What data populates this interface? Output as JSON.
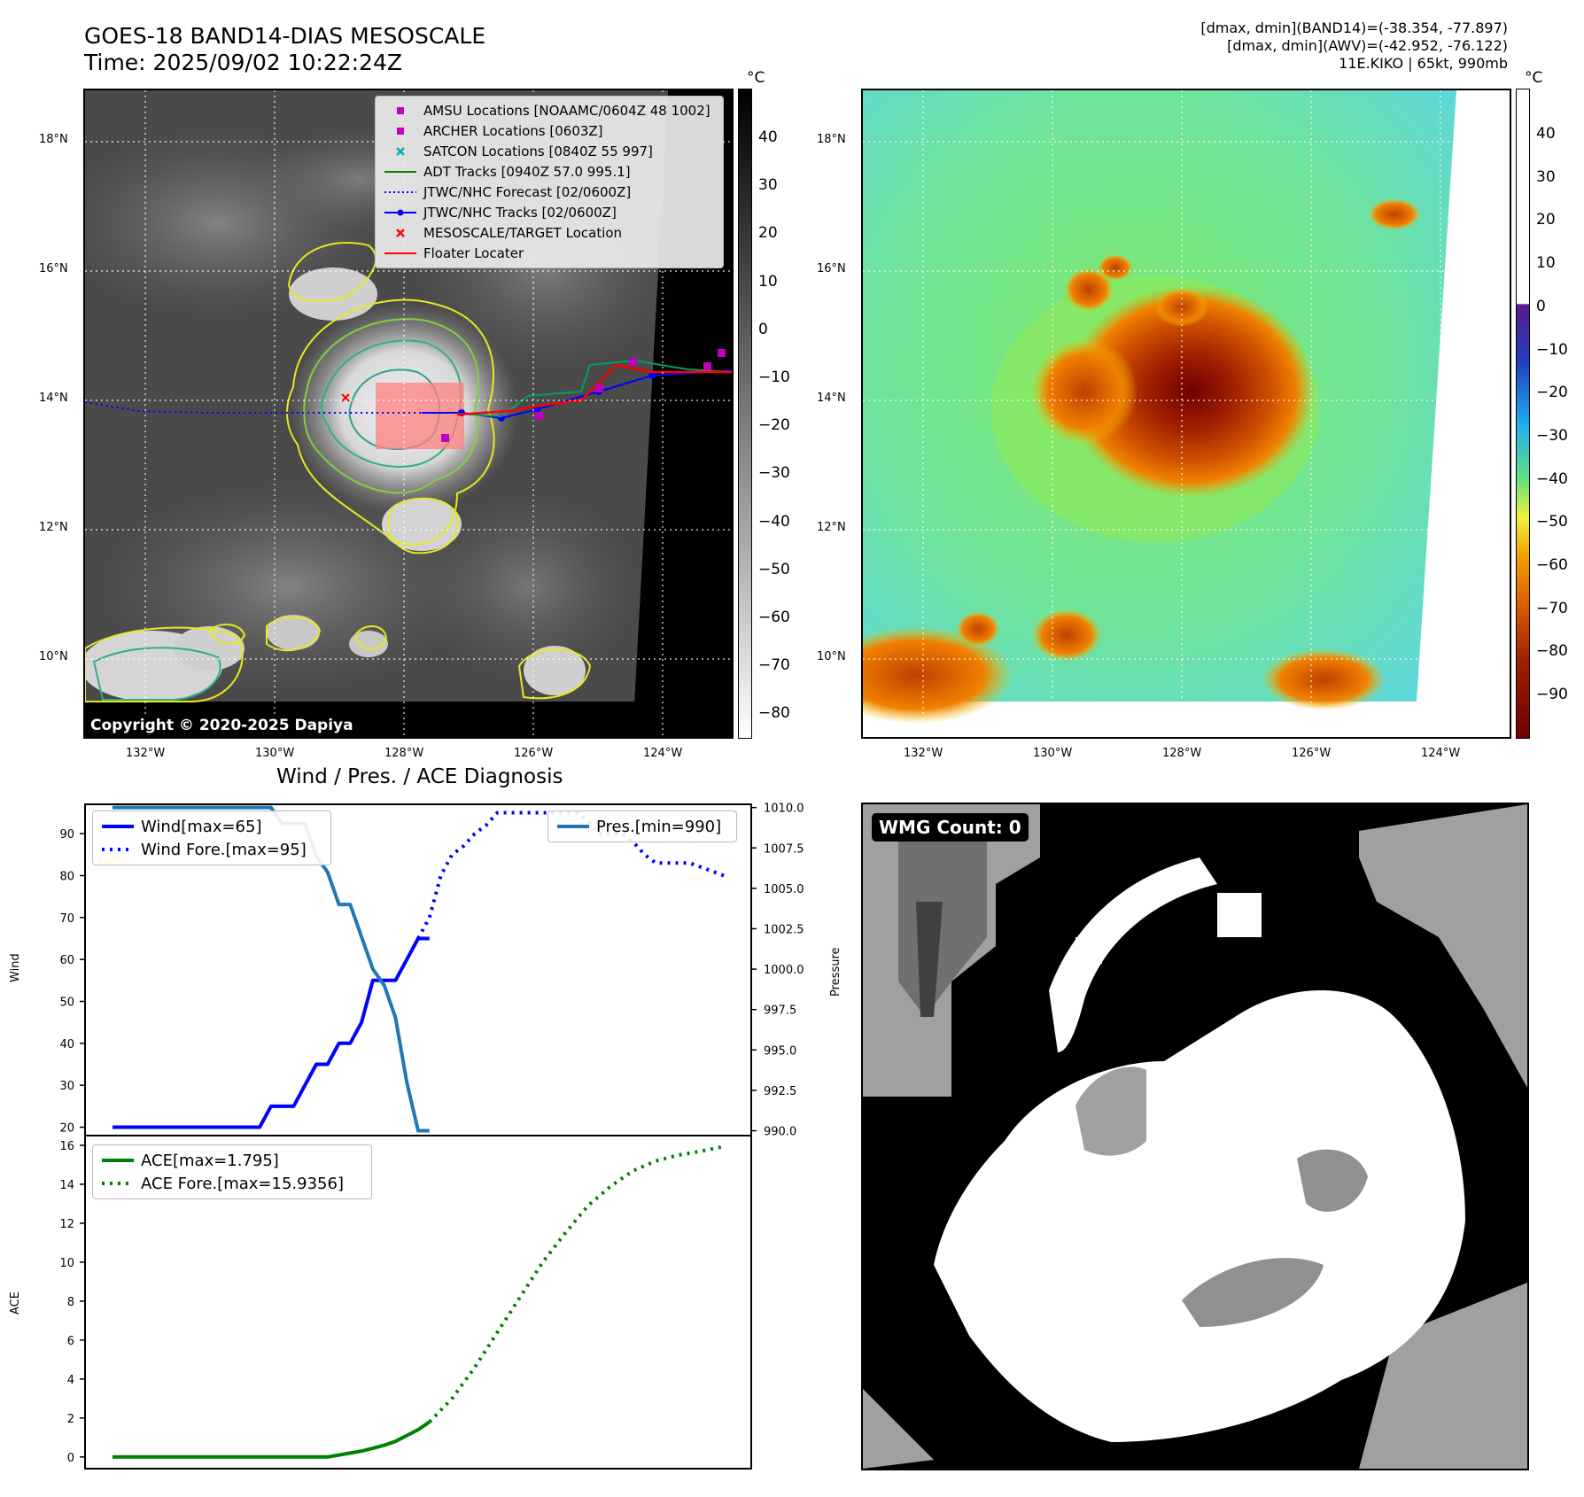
{
  "header": {
    "title_line1": "GOES-18 BAND14-DIAS MESOSCALE",
    "title_line2": "Time: 2025/09/02 10:22:24Z",
    "info_line1": "[dmax, dmin](BAND14)=(-38.354, -77.897)",
    "info_line2": "[dmax, dmin](AWV)=(-42.952, -76.122)",
    "info_line3": "11E.KIKO | 65kt, 990mb"
  },
  "map_panels": {
    "lon_ticks": [
      "132°W",
      "130°W",
      "128°W",
      "126°W",
      "124°W"
    ],
    "lat_ticks": [
      "18°N",
      "16°N",
      "14°N",
      "12°N",
      "10°N"
    ],
    "unit": "°C",
    "copyright": "Copyright © 2020-2025 Dapiya",
    "gray_colorbar_ticks": [
      "40",
      "30",
      "20",
      "10",
      "0",
      "−10",
      "−20",
      "−30",
      "−40",
      "−50",
      "−60",
      "−70",
      "−80"
    ],
    "color_colorbar_ticks": [
      "40",
      "30",
      "20",
      "10",
      "0",
      "−10",
      "−20",
      "−30",
      "−40",
      "−50",
      "−60",
      "−70",
      "−80",
      "−90"
    ],
    "legend": [
      {
        "label": "AMSU Locations [NOAAMC/0604Z 48 1002]",
        "color": "#c000c0",
        "symbol": "square"
      },
      {
        "label": "ARCHER Locations [0603Z]",
        "color": "#c000c0",
        "symbol": "square"
      },
      {
        "label": "SATCON Locations [0840Z 55 997]",
        "color": "#00b0b0",
        "symbol": "x"
      },
      {
        "label": "ADT Tracks [0940Z 57.0 995.1]",
        "color": "#008000",
        "symbol": "line"
      },
      {
        "label": "JTWC/NHC Forecast [02/0600Z]",
        "color": "#0000ff",
        "symbol": "dotted"
      },
      {
        "label": "JTWC/NHC Tracks [02/0600Z]",
        "color": "#0000ff",
        "symbol": "line-dot"
      },
      {
        "label": "MESOSCALE/TARGET Location",
        "color": "#ff0000",
        "symbol": "x"
      },
      {
        "label": "Floater Locater",
        "color": "#ff0000",
        "symbol": "line"
      }
    ]
  },
  "diagnosis": {
    "title": "Wind / Pres. / ACE Diagnosis",
    "wind_ylabel": "Wind",
    "pres_ylabel": "Pressure",
    "ace_ylabel": "ACE",
    "legend_wind": "Wind[max=65]",
    "legend_wind_fore": "Wind Fore.[max=95]",
    "legend_pres": "Pres.[min=990]",
    "legend_ace": "ACE[max=1.795]",
    "legend_ace_fore": "ACE Fore.[max=15.9356]",
    "wind_ticks": [
      "90",
      "80",
      "70",
      "60",
      "50",
      "40",
      "30",
      "20"
    ],
    "pres_ticks": [
      "1010.0",
      "1007.5",
      "1005.0",
      "1002.5",
      "1000.0",
      "997.5",
      "995.0",
      "992.5",
      "990.0"
    ],
    "ace_ticks": [
      "16",
      "14",
      "12",
      "10",
      "8",
      "6",
      "4",
      "2",
      "0"
    ]
  },
  "wmg": {
    "label": "WMG Count: 0"
  },
  "chart_data": [
    {
      "type": "line",
      "title": "Wind / Pres. / ACE Diagnosis",
      "ylabel": "Wind",
      "ylim": [
        18,
        97
      ],
      "x": [
        0,
        1,
        2,
        3,
        4,
        5,
        6,
        7,
        8,
        9,
        10,
        11,
        12,
        13,
        14,
        15,
        16,
        17,
        18,
        19,
        20,
        21,
        22,
        23,
        24,
        25,
        26,
        27,
        28,
        29,
        30,
        31,
        32,
        33,
        34,
        35,
        36,
        37,
        38,
        39,
        40,
        41,
        42,
        43,
        44,
        45,
        46,
        47,
        48,
        49,
        50,
        51,
        52,
        53,
        54
      ],
      "series": [
        {
          "name": "Wind[max=65]",
          "style": "solid",
          "color": "#0000ff",
          "x": [
            0,
            1,
            2,
            3,
            4,
            5,
            6,
            7,
            8,
            9,
            10,
            11,
            12,
            13,
            14,
            15,
            16,
            17,
            18,
            19,
            20,
            21,
            22,
            23,
            24,
            25,
            26,
            27,
            28
          ],
          "values": [
            20,
            20,
            20,
            20,
            20,
            20,
            20,
            20,
            20,
            20,
            20,
            20,
            20,
            20,
            25,
            25,
            25,
            30,
            35,
            35,
            40,
            40,
            45,
            55,
            55,
            55,
            60,
            65,
            65
          ]
        },
        {
          "name": "Wind Fore.[max=95]",
          "style": "dotted",
          "color": "#0000ff",
          "x": [
            27,
            28,
            29,
            30,
            31,
            32,
            33,
            34,
            35,
            36,
            37,
            38,
            39,
            40,
            41,
            42,
            43,
            44,
            45,
            46,
            47,
            48,
            49,
            50,
            51,
            52,
            53,
            54
          ],
          "values": [
            65,
            70,
            80,
            85,
            87,
            90,
            92,
            95,
            95,
            95,
            95,
            95,
            95,
            95,
            95,
            93,
            90,
            90,
            90,
            88,
            85,
            83,
            83,
            83,
            83,
            82,
            81,
            80
          ]
        }
      ]
    },
    {
      "type": "line",
      "ylabel": "Pressure",
      "ylim": [
        989.7,
        1010.2
      ],
      "series": [
        {
          "name": "Pres.[min=990]",
          "style": "solid",
          "color": "#1f77b4",
          "x": [
            0,
            1,
            2,
            3,
            4,
            5,
            6,
            7,
            8,
            9,
            10,
            11,
            12,
            13,
            14,
            15,
            16,
            17,
            18,
            19,
            20,
            21,
            22,
            23,
            24,
            25,
            26,
            27,
            28
          ],
          "values": [
            1010,
            1010,
            1010,
            1010,
            1010,
            1010,
            1010,
            1010,
            1010,
            1010,
            1010,
            1010,
            1010,
            1010,
            1010,
            1009,
            1009,
            1009,
            1007,
            1006,
            1004,
            1004,
            1002,
            1000,
            999,
            997,
            993,
            990,
            990
          ]
        }
      ]
    },
    {
      "type": "line",
      "ylabel": "ACE",
      "ylim": [
        -0.6,
        16.5
      ],
      "series": [
        {
          "name": "ACE[max=1.795]",
          "style": "solid",
          "color": "#008000",
          "x": [
            0,
            2,
            4,
            6,
            8,
            10,
            12,
            14,
            16,
            18,
            19,
            20,
            21,
            22,
            23,
            24,
            25,
            26,
            27,
            28
          ],
          "values": [
            0,
            0,
            0,
            0,
            0,
            0,
            0,
            0,
            0,
            0,
            0,
            0.1,
            0.2,
            0.3,
            0.45,
            0.6,
            0.8,
            1.1,
            1.4,
            1.795
          ]
        },
        {
          "name": "ACE Fore.[max=15.9356]",
          "style": "dotted",
          "color": "#008000",
          "x": [
            28,
            30,
            32,
            34,
            36,
            38,
            40,
            42,
            44,
            46,
            48,
            50,
            52,
            54
          ],
          "values": [
            1.795,
            3.0,
            4.6,
            6.4,
            8.2,
            10.0,
            11.5,
            12.9,
            13.9,
            14.7,
            15.2,
            15.5,
            15.7,
            15.9356
          ]
        }
      ]
    }
  ]
}
